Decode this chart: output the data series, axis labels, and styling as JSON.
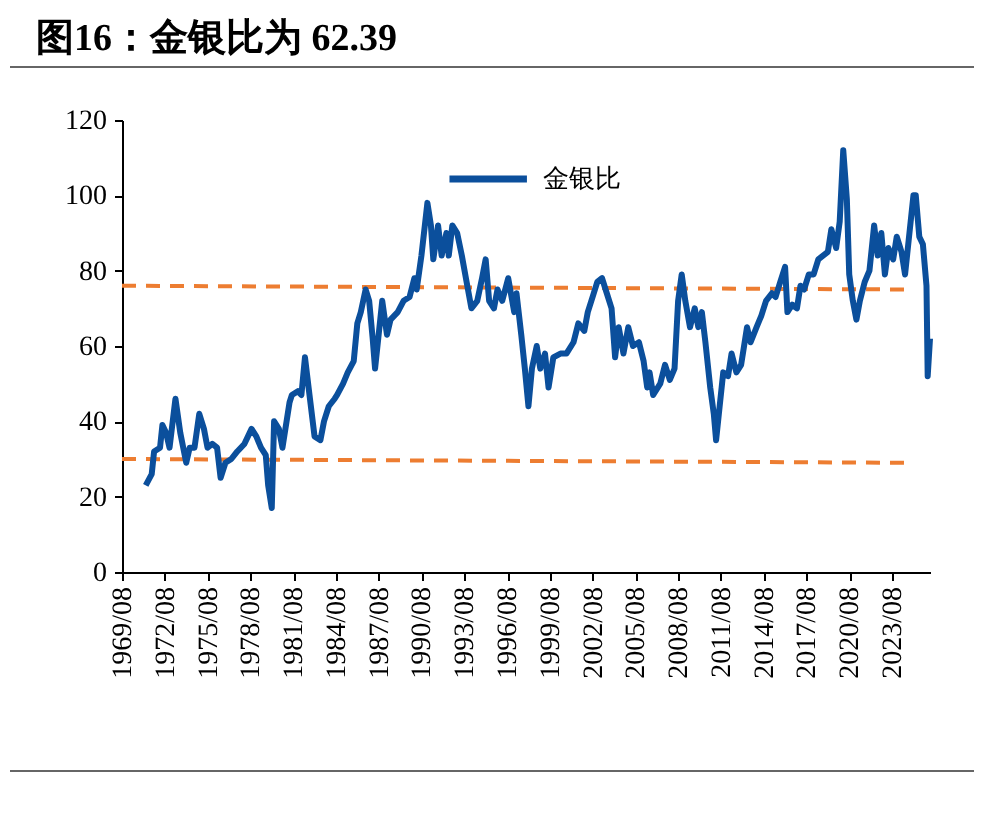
{
  "chart_data": {
    "type": "line",
    "title": "图16：金银比为 62.39",
    "legend": "top",
    "xlim": [
      "1969-08",
      "2026-04"
    ],
    "xticks": [
      {
        "value": "1969-08",
        "label": "1969/08"
      },
      {
        "value": "1972-08",
        "label": "1972/08"
      },
      {
        "value": "1975-08",
        "label": "1975/08"
      },
      {
        "value": "1978-08",
        "label": "1978/08"
      },
      {
        "value": "1981-08",
        "label": "1981/08"
      },
      {
        "value": "1984-08",
        "label": "1984/08"
      },
      {
        "value": "1987-08",
        "label": "1987/08"
      },
      {
        "value": "1990-08",
        "label": "1990/08"
      },
      {
        "value": "1993-08",
        "label": "1993/08"
      },
      {
        "value": "1996-08",
        "label": "1996/08"
      },
      {
        "value": "1999-08",
        "label": "1999/08"
      },
      {
        "value": "2002-08",
        "label": "2002/08"
      },
      {
        "value": "2005-08",
        "label": "2005/08"
      },
      {
        "value": "2008-08",
        "label": "2008/08"
      },
      {
        "value": "2011-08",
        "label": "2011/08"
      },
      {
        "value": "2014-08",
        "label": "2014/08"
      },
      {
        "value": "2017-08",
        "label": "2017/08"
      },
      {
        "value": "2020-08",
        "label": "2020/08"
      },
      {
        "value": "2023-08",
        "label": "2023/08"
      }
    ],
    "ylim": [
      0,
      120
    ],
    "yticks": [
      0,
      20,
      40,
      60,
      80,
      100,
      120
    ],
    "series": [
      {
        "name": "金银比",
        "color": "#0b4f9c",
        "line_style": "solid",
        "x": [
          "1971-04",
          "1971-09",
          "1971-11",
          "1972-04",
          "1972-06",
          "1972-09",
          "1972-12",
          "1973-05",
          "1973-09",
          "1974-02",
          "1974-05",
          "1974-09",
          "1975-01",
          "1975-05",
          "1975-08",
          "1975-12",
          "1976-04",
          "1976-07",
          "1976-11",
          "1977-04",
          "1977-09",
          "1978-03",
          "1978-09",
          "1979-01",
          "1979-05",
          "1979-09",
          "1979-11",
          "1980-02",
          "1980-04",
          "1980-08",
          "1980-11",
          "1981-05",
          "1981-07",
          "1981-12",
          "1982-03",
          "1982-06",
          "1982-09",
          "1983-02",
          "1983-07",
          "1983-10",
          "1984-02",
          "1984-07",
          "1984-09",
          "1985-02",
          "1985-06",
          "1985-11",
          "1986-02",
          "1986-05",
          "1986-09",
          "1986-12",
          "1987-03",
          "1987-05",
          "1987-08",
          "1987-11",
          "1988-03",
          "1988-06",
          "1988-12",
          "1989-05",
          "1989-10",
          "1990-02",
          "1990-04",
          "1990-08",
          "1991-01",
          "1991-04",
          "1991-06",
          "1991-10",
          "1992-01",
          "1992-05",
          "1992-07",
          "1992-10",
          "1993-02",
          "1993-06",
          "1993-10",
          "1994-02",
          "1994-07",
          "1994-11",
          "1995-02",
          "1995-05",
          "1995-09",
          "1995-12",
          "1996-04",
          "1996-09",
          "1997-02",
          "1997-04",
          "1997-08",
          "1997-11",
          "1998-02",
          "1998-05",
          "1998-09",
          "1998-12",
          "1999-04",
          "1999-07",
          "1999-11",
          "2000-05",
          "2000-10",
          "2001-04",
          "2001-08",
          "2002-01",
          "2002-04",
          "2002-08",
          "2002-12",
          "2003-04",
          "2003-08",
          "2003-12",
          "2004-03",
          "2004-06",
          "2004-10",
          "2005-02",
          "2005-06",
          "2005-11",
          "2006-03",
          "2006-06",
          "2006-08",
          "2006-11",
          "2007-05",
          "2007-09",
          "2008-01",
          "2008-05",
          "2008-08",
          "2008-11",
          "2009-02",
          "2009-06",
          "2009-10",
          "2010-01",
          "2010-04",
          "2010-07",
          "2010-11",
          "2011-02",
          "2011-04",
          "2011-07",
          "2011-10",
          "2012-02",
          "2012-05",
          "2012-09",
          "2013-01",
          "2013-06",
          "2013-09",
          "2014-02",
          "2014-06",
          "2014-10",
          "2015-03",
          "2015-06",
          "2015-10",
          "2016-02",
          "2016-04",
          "2016-08",
          "2016-12",
          "2017-03",
          "2017-06",
          "2017-10",
          "2018-02",
          "2018-06",
          "2018-10",
          "2019-02",
          "2019-05",
          "2019-09",
          "2019-12",
          "2020-03",
          "2020-06",
          "2020-08",
          "2020-11",
          "2021-02",
          "2021-05",
          "2021-09",
          "2022-01",
          "2022-05",
          "2022-08",
          "2022-11",
          "2023-02",
          "2023-05",
          "2023-09",
          "2023-12",
          "2024-04",
          "2024-07",
          "2024-10",
          "2025-02",
          "2025-04",
          "2025-07",
          "2025-10",
          "2026-01",
          "2026-02",
          "2026-04"
        ],
        "values": [
          23,
          26,
          32,
          33,
          39,
          37,
          33,
          46,
          37,
          29,
          33,
          33,
          42,
          38,
          33,
          34,
          33,
          25,
          29,
          30,
          32,
          34,
          38,
          36,
          33,
          31,
          23,
          17,
          40,
          38,
          33,
          45,
          47,
          48,
          47,
          57,
          49,
          36,
          35,
          40,
          44,
          46,
          47,
          50,
          53,
          56,
          66,
          69,
          75,
          72,
          62,
          54,
          63,
          72,
          63,
          67,
          69,
          72,
          73,
          78,
          75,
          84,
          98,
          92,
          83,
          92,
          84,
          90,
          84,
          92,
          90,
          84,
          77,
          70,
          72,
          78,
          83,
          72,
          70,
          75,
          72,
          78,
          69,
          74,
          63,
          54,
          44,
          54,
          60,
          54,
          58,
          49,
          57,
          58,
          58,
          61,
          66,
          64,
          69,
          73,
          77,
          78,
          74,
          70,
          57,
          65,
          58,
          65,
          60,
          61,
          56,
          49,
          53,
          47,
          50,
          55,
          51,
          54,
          72,
          79,
          72,
          65,
          70,
          65,
          69,
          61,
          49,
          42,
          35,
          44,
          53,
          52,
          58,
          53,
          55,
          65,
          61,
          65,
          68,
          72,
          74,
          73,
          77,
          81,
          69,
          71,
          70,
          76,
          75,
          79,
          79,
          83,
          84,
          85,
          91,
          86,
          93,
          112,
          99,
          79,
          72,
          67,
          72,
          77,
          80,
          92,
          84,
          90,
          79,
          86,
          83,
          89,
          85,
          79,
          88,
          100,
          100,
          89,
          87,
          76,
          52,
          62
        ]
      },
      {
        "color": "#ed7d31",
        "line_style": "dashed",
        "x": [
          "1969-08",
          "2024-10"
        ],
        "values": [
          76,
          75
        ]
      },
      {
        "color": "#ed7d31",
        "line_style": "dashed",
        "x": [
          "1969-08",
          "2024-10"
        ],
        "values": [
          30,
          29
        ]
      }
    ]
  }
}
